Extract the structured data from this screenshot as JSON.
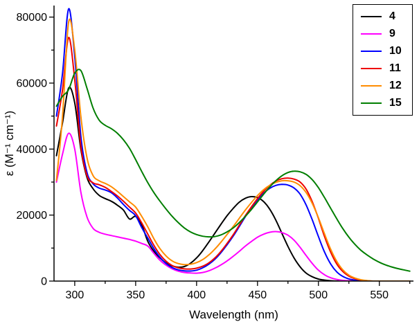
{
  "chart_data": {
    "type": "line",
    "title": "",
    "xlabel": "Wavelength (nm)",
    "ylabel": "ε (M⁻¹ cm⁻¹)",
    "xlim": [
      283,
      578
    ],
    "ylim": [
      0,
      83500
    ],
    "x_ticks": [
      300,
      350,
      400,
      450,
      500,
      550
    ],
    "y_ticks": [
      0,
      20000,
      40000,
      60000,
      80000
    ],
    "x_minor_step": 25,
    "y_minor_step": 10000,
    "grid": false,
    "legend_position": "top-right",
    "x": [
      285,
      290,
      295,
      300,
      305,
      310,
      315,
      320,
      325,
      330,
      335,
      340,
      345,
      350,
      355,
      360,
      365,
      370,
      375,
      380,
      385,
      390,
      395,
      400,
      405,
      410,
      415,
      420,
      425,
      430,
      435,
      440,
      445,
      450,
      455,
      460,
      465,
      470,
      475,
      480,
      485,
      490,
      495,
      500,
      505,
      510,
      515,
      520,
      525,
      530,
      535,
      540,
      545,
      550,
      555,
      560,
      565,
      570,
      575
    ],
    "series": [
      {
        "name": "4",
        "color": "#000000",
        "values": [
          38000,
          48000,
          58500,
          54000,
          40000,
          31500,
          28000,
          26000,
          25000,
          24200,
          23000,
          21500,
          18800,
          19600,
          17000,
          12000,
          9000,
          7000,
          5500,
          4600,
          4200,
          4400,
          5400,
          7000,
          9200,
          11800,
          14500,
          17200,
          19800,
          22000,
          23900,
          25100,
          25600,
          25300,
          24100,
          21800,
          18500,
          14500,
          10500,
          7000,
          4300,
          2400,
          1300,
          600,
          300,
          100,
          0,
          0,
          0,
          0,
          0,
          0,
          0,
          0,
          0,
          0,
          0,
          0,
          0
        ]
      },
      {
        "name": "9",
        "color": "#ff00ff",
        "values": [
          30000,
          38500,
          44800,
          40000,
          27000,
          19500,
          16000,
          14800,
          14200,
          13800,
          13400,
          13000,
          12600,
          12100,
          11400,
          10600,
          8400,
          6300,
          4800,
          3700,
          3000,
          2600,
          2450,
          2400,
          2600,
          3100,
          3900,
          4900,
          6100,
          7500,
          9000,
          10600,
          12000,
          13300,
          14200,
          14800,
          15000,
          14700,
          13900,
          12400,
          10200,
          7700,
          5300,
          3300,
          1900,
          1000,
          500,
          200,
          100,
          0,
          0,
          0,
          0,
          0,
          0,
          0,
          0,
          0,
          0
        ]
      },
      {
        "name": "10",
        "color": "#0000ff",
        "values": [
          50000,
          63000,
          82500,
          68000,
          44000,
          33000,
          29500,
          28200,
          27600,
          26800,
          25200,
          23200,
          21400,
          19800,
          16200,
          13000,
          9800,
          7200,
          5300,
          4100,
          3400,
          3100,
          3050,
          3300,
          4000,
          5100,
          6600,
          8600,
          11000,
          13600,
          16500,
          19500,
          22200,
          24600,
          26600,
          28100,
          29000,
          29300,
          29100,
          28200,
          26300,
          23000,
          18500,
          13500,
          8800,
          5200,
          2800,
          1400,
          650,
          280,
          100,
          0,
          0,
          0,
          0,
          0,
          0,
          0,
          0
        ]
      },
      {
        "name": "11",
        "color": "#ee0000",
        "values": [
          47000,
          58000,
          73800,
          61000,
          41000,
          32000,
          29800,
          29200,
          28400,
          27200,
          25800,
          24200,
          22400,
          20600,
          17600,
          14200,
          10800,
          8000,
          6000,
          4700,
          4000,
          3700,
          3650,
          3900,
          4500,
          5500,
          7000,
          9000,
          11400,
          14000,
          16900,
          19800,
          22500,
          25000,
          27200,
          29000,
          30300,
          31000,
          31200,
          30900,
          30000,
          27800,
          24000,
          19000,
          13500,
          8800,
          5200,
          2900,
          1500,
          700,
          300,
          100,
          0,
          0,
          0,
          0,
          0,
          0,
          0
        ]
      },
      {
        "name": "12",
        "color": "#ff8c00",
        "values": [
          30500,
          50000,
          78500,
          70000,
          50000,
          37500,
          32000,
          30400,
          29600,
          28600,
          27200,
          25600,
          24000,
          22400,
          19600,
          16400,
          12800,
          9800,
          7600,
          6100,
          5300,
          5000,
          5100,
          5600,
          6500,
          7900,
          9700,
          11800,
          14100,
          16500,
          19000,
          21500,
          23800,
          25900,
          27700,
          29000,
          29900,
          30400,
          30400,
          30000,
          28900,
          26800,
          23500,
          19200,
          14300,
          9700,
          6000,
          3400,
          1800,
          900,
          400,
          150,
          0,
          0,
          0,
          0,
          0,
          0,
          0
        ]
      },
      {
        "name": "15",
        "color": "#007e00",
        "values": [
          53000,
          56000,
          58000,
          63000,
          63800,
          58500,
          52500,
          48800,
          47200,
          46200,
          44800,
          42800,
          40200,
          36800,
          33200,
          29800,
          26800,
          24200,
          21800,
          19600,
          17700,
          16100,
          14900,
          14100,
          13600,
          13400,
          13500,
          14000,
          14900,
          16100,
          17700,
          19600,
          21700,
          24000,
          26300,
          28500,
          30400,
          31900,
          32900,
          33300,
          33100,
          32300,
          30700,
          28300,
          25300,
          22100,
          18900,
          15900,
          13300,
          11100,
          9300,
          7900,
          6700,
          5700,
          4900,
          4300,
          3800,
          3400,
          3000
        ]
      }
    ]
  }
}
